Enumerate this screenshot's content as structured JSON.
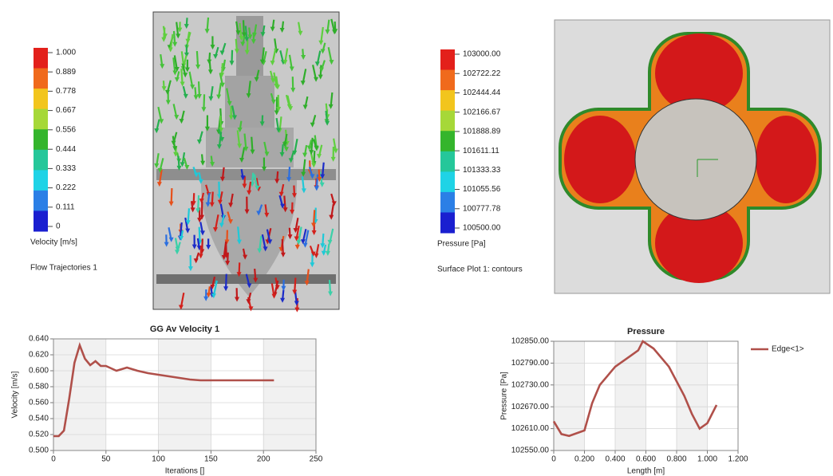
{
  "colorbars": [
    {
      "title": "Velocity [m/s]",
      "caption": "Flow Trajectories 1",
      "colors": [
        "#e3201b",
        "#f06a1c",
        "#f2c51d",
        "#a6d838",
        "#34b52c",
        "#25c79a",
        "#1fd3e6",
        "#2b7fe6",
        "#1a1fd0"
      ],
      "ticks": [
        {
          "value": 1,
          "label": "1.000"
        },
        {
          "value": 0.889,
          "label": "0.889"
        },
        {
          "value": 0.778,
          "label": "0.778"
        },
        {
          "value": 0.667,
          "label": "0.667"
        },
        {
          "value": 0.556,
          "label": "0.556"
        },
        {
          "value": 0.444,
          "label": "0.444"
        },
        {
          "value": 0.333,
          "label": "0.333"
        },
        {
          "value": 0.222,
          "label": "0.222"
        },
        {
          "value": 0.111,
          "label": "0.111"
        },
        0
      ]
    },
    {
      "title": "Pressure [Pa]",
      "caption": "Surface Plot 1: contours",
      "colors": [
        "#e3201b",
        "#f06a1c",
        "#f2c51d",
        "#a6d838",
        "#34b52c",
        "#25c79a",
        "#1fd3e6",
        "#2b7fe6",
        "#1a1fd0"
      ],
      "ticks": [
        {
          "value": 103000,
          "label": "103000.00"
        },
        {
          "value": 102722.22,
          "label": "102722.22"
        },
        {
          "value": 102444.44,
          "label": "102444.44"
        },
        {
          "value": 102166.67,
          "label": "102166.67"
        },
        {
          "value": 101888.89,
          "label": "101888.89"
        },
        {
          "value": 101611.11,
          "label": "101611.11"
        },
        {
          "value": 101333.33,
          "label": "101333.33"
        },
        {
          "value": 101055.56,
          "label": "101055.56"
        },
        {
          "value": 100777.78,
          "label": "100777.78"
        },
        {
          "value": 100500,
          "label": "100500.00"
        }
      ]
    }
  ],
  "chart_data": [
    {
      "type": "line",
      "title": "GG Av Velocity 1",
      "x_label": "Iterations []",
      "y_label": "Velocity [m/s]",
      "x": [
        0,
        5,
        10,
        15,
        20,
        25,
        30,
        35,
        40,
        45,
        50,
        55,
        60,
        65,
        70,
        80,
        90,
        100,
        110,
        120,
        130,
        140,
        160,
        180,
        210
      ],
      "series": [
        {
          "color": "#b0504a",
          "values": [
            0.518,
            0.518,
            0.525,
            0.565,
            0.61,
            0.632,
            0.615,
            0.607,
            0.612,
            0.606,
            0.606,
            0.603,
            0.6,
            0.602,
            0.604,
            0.6,
            0.597,
            0.595,
            0.593,
            0.591,
            0.589,
            0.588,
            0.588,
            0.588,
            0.588
          ]
        }
      ],
      "xlim": [
        0,
        250
      ],
      "xticks": [
        0,
        50,
        100,
        150,
        200,
        250
      ],
      "ylim": [
        0.5,
        0.64
      ],
      "yticks": [
        {
          "value": 0.5,
          "label": "0.500"
        },
        {
          "value": 0.52,
          "label": "0.520"
        },
        {
          "value": 0.54,
          "label": "0.540"
        },
        {
          "value": 0.56,
          "label": "0.560"
        },
        {
          "value": 0.58,
          "label": "0.580"
        },
        {
          "value": 0.6,
          "label": "0.600"
        },
        {
          "value": 0.62,
          "label": "0.620"
        },
        {
          "value": 0.64,
          "label": "0.640"
        }
      ],
      "grid": true
    },
    {
      "type": "line",
      "title": "Pressure",
      "x_label": "Length [m]",
      "y_label": "Pressure [Pa]",
      "x": [
        0,
        0.05,
        0.1,
        0.2,
        0.25,
        0.3,
        0.4,
        0.5,
        0.55,
        0.58,
        0.65,
        0.75,
        0.85,
        0.9,
        0.95,
        1.0,
        1.06
      ],
      "series": [
        {
          "name": "Edge<1>",
          "color": "#b0504a",
          "values": [
            102630,
            102595,
            102590,
            102605,
            102680,
            102730,
            102780,
            102810,
            102825,
            102850,
            102830,
            102780,
            102700,
            102650,
            102610,
            102625,
            102675
          ]
        }
      ],
      "xlim": [
        0,
        1.2
      ],
      "xticks": [
        0,
        {
          "value": 0.2,
          "label": "0.200"
        },
        {
          "value": 0.4,
          "label": "0.400"
        },
        {
          "value": 0.6,
          "label": "0.600"
        },
        {
          "value": 0.8,
          "label": "0.800"
        },
        {
          "value": 1.0,
          "label": "1.000"
        },
        {
          "value": 1.2,
          "label": "1.200"
        }
      ],
      "ylim": [
        102550,
        102850
      ],
      "yticks": [
        {
          "value": 102550,
          "label": "102550.00"
        },
        {
          "value": 102610,
          "label": "102610.00"
        },
        {
          "value": 102670,
          "label": "102670.00"
        },
        {
          "value": 102730,
          "label": "102730.00"
        },
        {
          "value": 102790,
          "label": "102790.00"
        },
        {
          "value": 102850,
          "label": "102850.00"
        }
      ],
      "grid": true,
      "legend": "right"
    }
  ]
}
